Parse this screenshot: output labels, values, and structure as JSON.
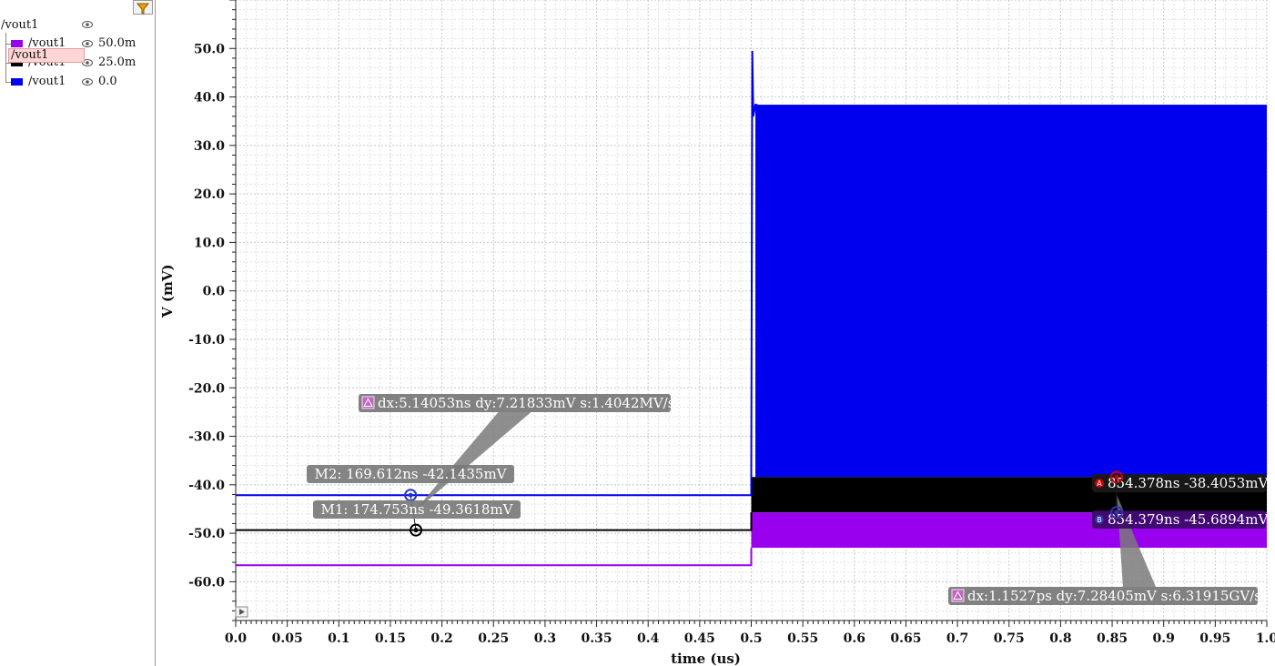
{
  "legend": {
    "group_label": "/vout1",
    "items": [
      {
        "name": "/vout1",
        "offset": "50.0m",
        "color": "#9900ee"
      },
      {
        "name": "/vout1",
        "offset": "25.0m",
        "color": "#000000"
      },
      {
        "name": "/vout1",
        "offset": "0.0",
        "color": "#0000ee"
      }
    ],
    "drag_label": "/vout1"
  },
  "chart_data": {
    "type": "line",
    "title": "",
    "xlabel": "time (us)",
    "ylabel": "V (mV)",
    "xlim": [
      0.0,
      1.0
    ],
    "ylim": [
      -68,
      60
    ],
    "x_ticks": [
      "0.0",
      "0.05",
      "0.1",
      "0.15",
      "0.2",
      "0.25",
      "0.3",
      "0.35",
      "0.4",
      "0.45",
      "0.5",
      "0.55",
      "0.6",
      "0.65",
      "0.7",
      "0.75",
      "0.8",
      "0.85",
      "0.9",
      "0.95",
      "1.0"
    ],
    "y_ticks": [
      "50.0",
      "40.0",
      "30.0",
      "20.0",
      "10.0",
      "0.0",
      "-10.0",
      "-20.0",
      "-30.0",
      "-40.0",
      "-50.0",
      "-60.0"
    ],
    "grid": true,
    "series": [
      {
        "color": "#0000ee",
        "x": [
          0.0,
          0.5,
          0.5,
          0.501,
          0.502,
          0.504,
          0.506
        ],
        "y": [
          -42.15,
          -42.15,
          -38.4,
          49.5,
          36.0,
          38.4,
          38.4
        ],
        "band": {
          "x": [
            0.504,
            1.0
          ],
          "low": -38.4,
          "high": 38.4
        }
      },
      {
        "color": "#000000",
        "x": [
          0.0,
          0.5,
          0.5
        ],
        "y": [
          -49.36,
          -49.36,
          -45.7
        ],
        "band": {
          "x": [
            0.5,
            1.0
          ],
          "low": -45.7,
          "high": -38.4
        }
      },
      {
        "color": "#9900ee",
        "x": [
          0.0,
          0.5,
          0.5
        ],
        "y": [
          -56.6,
          -56.6,
          -53.0
        ],
        "band": {
          "x": [
            0.5,
            1.0
          ],
          "low": -53.0,
          "high": -45.7
        }
      }
    ],
    "markers": [
      {
        "id": "M2",
        "label": "M2: 169.612ns -42.1435mV",
        "x": 0.1696,
        "y": -42.14,
        "color": "#2233cc"
      },
      {
        "id": "M1",
        "label": "M1: 174.753ns -49.3618mV",
        "x": 0.1748,
        "y": -49.36,
        "color": "#000000"
      },
      {
        "id": "A",
        "label": "854.378ns -38.4053mV",
        "x": 0.8544,
        "y": -38.41,
        "color": "#cc0000"
      },
      {
        "id": "B",
        "label": "854.379ns -45.6894mV",
        "x": 0.8544,
        "y": -45.69,
        "color": "#3333aa"
      }
    ],
    "deltas": [
      {
        "label": "dx:5.14053ns dy:7.21833mV s:1.4042MV/s",
        "from": "M2",
        "to": "M1"
      },
      {
        "label": "dx:1.1527ps dy:7.28405mV s:6.31915GV/s",
        "from": "A",
        "to": "B"
      }
    ]
  }
}
